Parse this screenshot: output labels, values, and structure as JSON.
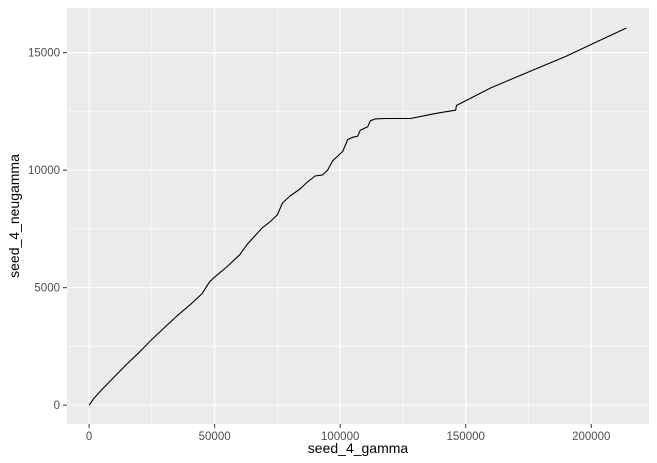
{
  "chart_data": {
    "type": "line",
    "xlabel": "seed_4_gamma",
    "ylabel": "seed_4_neugamma",
    "xlim": [
      -8800,
      223000
    ],
    "ylim": [
      -800,
      16900
    ],
    "x_ticks": [
      0,
      50000,
      100000,
      150000,
      200000
    ],
    "x_tick_labels": [
      "0",
      "50000",
      "100000",
      "150000",
      "200000"
    ],
    "y_ticks": [
      0,
      5000,
      10000,
      15000
    ],
    "y_tick_labels": [
      "0",
      "5000",
      "10000",
      "15000"
    ],
    "grid": true,
    "series": [
      {
        "points": [
          [
            0,
            0
          ],
          [
            2000,
            300
          ],
          [
            5000,
            650
          ],
          [
            10000,
            1200
          ],
          [
            15000,
            1750
          ],
          [
            20000,
            2250
          ],
          [
            25000,
            2800
          ],
          [
            30000,
            3300
          ],
          [
            35000,
            3800
          ],
          [
            40000,
            4250
          ],
          [
            45000,
            4750
          ],
          [
            48000,
            5250
          ],
          [
            50000,
            5450
          ],
          [
            55000,
            5900
          ],
          [
            60000,
            6400
          ],
          [
            63000,
            6850
          ],
          [
            66000,
            7200
          ],
          [
            69000,
            7550
          ],
          [
            72000,
            7800
          ],
          [
            75000,
            8100
          ],
          [
            77000,
            8600
          ],
          [
            80000,
            8900
          ],
          [
            84000,
            9200
          ],
          [
            87000,
            9500
          ],
          [
            90000,
            9750
          ],
          [
            93000,
            9800
          ],
          [
            95000,
            10000
          ],
          [
            97000,
            10400
          ],
          [
            99000,
            10600
          ],
          [
            101000,
            10800
          ],
          [
            103000,
            11300
          ],
          [
            105000,
            11400
          ],
          [
            107000,
            11450
          ],
          [
            108000,
            11700
          ],
          [
            110000,
            11800
          ],
          [
            111000,
            11850
          ],
          [
            112000,
            12100
          ],
          [
            114000,
            12180
          ],
          [
            118000,
            12200
          ],
          [
            125000,
            12200
          ],
          [
            128000,
            12200
          ],
          [
            135000,
            12350
          ],
          [
            140000,
            12450
          ],
          [
            146000,
            12550
          ],
          [
            146300,
            12750
          ],
          [
            150000,
            12950
          ],
          [
            160000,
            13500
          ],
          [
            170000,
            13950
          ],
          [
            180000,
            14400
          ],
          [
            190000,
            14850
          ],
          [
            200000,
            15350
          ],
          [
            214000,
            16050
          ]
        ]
      }
    ]
  }
}
